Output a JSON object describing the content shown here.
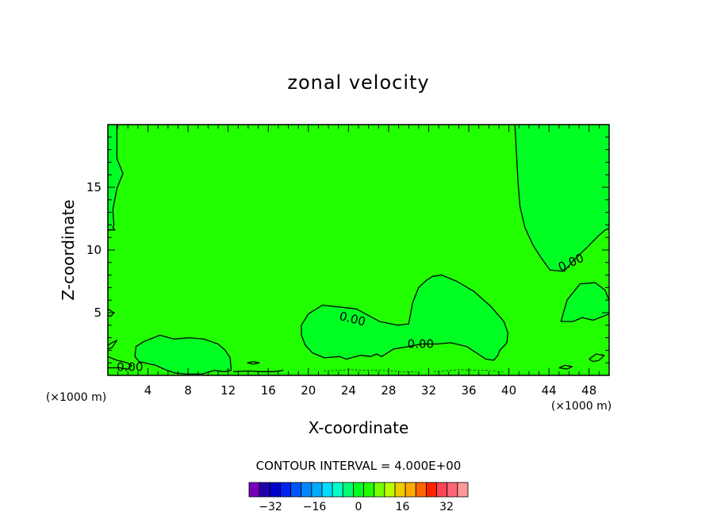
{
  "chart_data": {
    "type": "contour",
    "title": "zonal velocity",
    "xlabel": "X-coordinate",
    "ylabel": "Z-coordinate",
    "x_unit": "(×1000 m)",
    "xlim": [
      0,
      50
    ],
    "ylim": [
      0,
      20
    ],
    "x_ticks": [
      4,
      8,
      12,
      16,
      20,
      24,
      28,
      32,
      36,
      40,
      44,
      48
    ],
    "x_tick_labels": [
      "4",
      "8",
      "12",
      "16",
      "20",
      "24",
      "28",
      "32",
      "36",
      "40",
      "44",
      "48"
    ],
    "y_ticks": [
      5,
      10,
      15
    ],
    "y_tick_labels": [
      "5",
      "10",
      "15"
    ],
    "contour_interval_text": "CONTOUR INTERVAL = 4.000E+00",
    "contour_interval": 4.0,
    "contour_line_labels": [
      "0.00",
      "0.00",
      "0.00",
      "0.00"
    ],
    "background_fill_color": "#22ff00",
    "region_fill_color": "#00ff22",
    "regions": [
      {
        "kind": "negative",
        "x": [
          0,
          0.9,
          0.9,
          1.5,
          0.9,
          0.5,
          0.6,
          0.5,
          0.7,
          0
        ],
        "y": [
          20,
          20,
          17.3,
          16.1,
          14.9,
          13.2,
          12.0,
          11.8,
          11.6,
          11.6
        ]
      },
      {
        "kind": "negative",
        "x": [
          40.6,
          40.9,
          41.1,
          41.6,
          42.4,
          43.2,
          44.1,
          45.5,
          46.6,
          47.8,
          48.9,
          49.6,
          50,
          50,
          40.6
        ],
        "y": [
          20,
          15.5,
          13.5,
          11.8,
          10.4,
          9.4,
          8.4,
          8.3,
          9.3,
          10.2,
          11.1,
          11.6,
          11.7,
          20,
          20
        ]
      },
      {
        "kind": "negative",
        "x": [
          19.3,
          20.0,
          21.4,
          24.8,
          27.1,
          28.9,
          30.0,
          30.4,
          31.0,
          31.8,
          32.4,
          33.3,
          34.8,
          36.5,
          38.2,
          39.5,
          39.9,
          39.8,
          39.1,
          38.9,
          38.5,
          37.7,
          35.8,
          34.2,
          32.8,
          31.3,
          30.0,
          28.5,
          27.3,
          26.8,
          26.2,
          25.2,
          23.8,
          23.1,
          21.6,
          20.4,
          19.7,
          19.3
        ],
        "y": [
          4.0,
          4.9,
          5.6,
          5.3,
          4.3,
          4.0,
          4.1,
          5.8,
          7.0,
          7.6,
          7.9,
          8.0,
          7.5,
          6.7,
          5.5,
          4.3,
          3.4,
          2.6,
          2.0,
          1.6,
          1.2,
          1.3,
          2.3,
          2.6,
          2.5,
          2.5,
          2.3,
          2.1,
          1.5,
          1.7,
          1.5,
          1.6,
          1.3,
          1.5,
          1.4,
          1.8,
          2.4,
          3.2
        ]
      },
      {
        "kind": "negative",
        "x": [
          2.8,
          3.6,
          5.2,
          6.6,
          8.1,
          9.6,
          11.0,
          11.7,
          12.2,
          12.3,
          11.6,
          10.6,
          9.4,
          7.8,
          6.6,
          5.6,
          4.8,
          4.2,
          3.1,
          2.7,
          2.8
        ],
        "y": [
          2.3,
          2.7,
          3.2,
          2.9,
          3.0,
          2.9,
          2.5,
          2.0,
          1.4,
          0.4,
          0.3,
          0.4,
          0.1,
          0.1,
          0.2,
          0.5,
          0.8,
          0.9,
          1.1,
          1.5,
          2.3
        ]
      },
      {
        "kind": "negative",
        "x": [
          45.2,
          45.8,
          47.1,
          48.6,
          49.6,
          50,
          50,
          48.4,
          47.3,
          46.4,
          45.4,
          45.2
        ],
        "y": [
          4.3,
          6.0,
          7.3,
          7.4,
          6.8,
          6.0,
          4.9,
          4.4,
          4.6,
          4.3,
          4.3,
          4.3
        ]
      }
    ],
    "contours": [
      {
        "value": 0,
        "x": [
          0.9,
          0.9,
          1.5,
          0.9,
          0.5,
          0.6,
          0.5,
          0.7,
          0
        ],
        "y": [
          20,
          17.3,
          16.1,
          14.9,
          13.2,
          12.0,
          11.8,
          11.6,
          11.6
        ]
      },
      {
        "value": 0,
        "x": [
          40.6,
          40.9,
          41.1,
          41.6,
          42.4,
          43.2,
          44.1,
          45.5,
          46.6,
          47.8,
          48.9,
          49.6,
          50
        ],
        "y": [
          20,
          15.5,
          13.5,
          11.8,
          10.4,
          9.4,
          8.4,
          8.3,
          9.3,
          10.2,
          11.1,
          11.6,
          11.7
        ]
      },
      {
        "value": 0,
        "closed": true,
        "x": [
          19.3,
          20.0,
          21.4,
          24.8,
          27.1,
          28.9,
          30.0,
          30.4,
          31.0,
          31.8,
          32.4,
          33.3,
          34.8,
          36.5,
          38.2,
          39.5,
          39.9,
          39.8,
          39.1,
          38.9,
          38.5,
          37.7,
          35.8,
          34.2,
          32.8,
          31.3,
          30.0,
          28.5,
          27.3,
          26.8,
          26.2,
          25.2,
          23.8,
          23.1,
          21.6,
          20.4,
          19.7,
          19.3
        ],
        "y": [
          4.0,
          4.9,
          5.6,
          5.3,
          4.3,
          4.0,
          4.1,
          5.8,
          7.0,
          7.6,
          7.9,
          8.0,
          7.5,
          6.7,
          5.5,
          4.3,
          3.4,
          2.6,
          2.0,
          1.6,
          1.2,
          1.3,
          2.3,
          2.6,
          2.5,
          2.5,
          2.3,
          2.1,
          1.5,
          1.7,
          1.5,
          1.6,
          1.3,
          1.5,
          1.4,
          1.8,
          2.4,
          3.2
        ]
      },
      {
        "value": 0,
        "closed": true,
        "x": [
          2.8,
          3.6,
          5.2,
          6.6,
          8.1,
          9.6,
          11.0,
          11.7,
          12.2,
          12.3,
          11.6,
          10.6,
          9.4,
          7.8,
          6.6,
          5.6,
          4.8,
          4.2,
          3.1,
          2.7,
          2.8
        ],
        "y": [
          2.3,
          2.7,
          3.2,
          2.9,
          3.0,
          2.9,
          2.5,
          2.0,
          1.4,
          0.4,
          0.3,
          0.4,
          0.1,
          0.1,
          0.2,
          0.5,
          0.8,
          0.9,
          1.1,
          1.5,
          2.3
        ]
      },
      {
        "value": 0,
        "x": [
          50,
          49.6,
          48.6,
          47.1,
          45.8,
          45.2,
          45.4,
          46.4,
          47.3,
          48.4,
          50
        ],
        "y": [
          6.0,
          6.8,
          7.4,
          7.3,
          6.0,
          4.3,
          4.3,
          4.3,
          4.6,
          4.4,
          4.9
        ]
      },
      {
        "value": 0,
        "x": [
          0,
          0.6,
          0.3,
          0
        ],
        "y": [
          5.3,
          5.0,
          4.7,
          4.8
        ]
      },
      {
        "value": 0,
        "x": [
          0,
          0.9,
          1.5,
          1.9,
          2.4,
          2.0,
          1.2,
          0
        ],
        "y": [
          1.5,
          1.2,
          1.1,
          1.0,
          0.8,
          0.5,
          0.6,
          0.6
        ]
      },
      {
        "value": 0,
        "x": [
          12.5,
          14.0,
          15.3,
          16.6,
          17.5
        ],
        "y": [
          0.3,
          0.35,
          0.3,
          0.3,
          0.4
        ]
      },
      {
        "value": 0,
        "x": [
          13.9,
          14.5,
          15.1,
          14.5,
          13.9
        ],
        "y": [
          1.0,
          1.1,
          1.0,
          0.9,
          1.0
        ]
      },
      {
        "value": 0,
        "x": [
          48.0,
          48.7,
          49.5,
          49.0,
          48.4,
          48.0
        ],
        "y": [
          1.3,
          1.7,
          1.6,
          1.2,
          1.1,
          1.3
        ]
      },
      {
        "value": 0,
        "x": [
          45.0,
          45.6,
          46.3,
          45.8,
          45.0
        ],
        "y": [
          0.6,
          0.8,
          0.7,
          0.5,
          0.6
        ]
      },
      {
        "value": 0,
        "x": [
          0,
          0.4,
          0.9,
          0.4,
          0
        ],
        "y": [
          2.4,
          2.6,
          2.8,
          2.2,
          2.1
        ]
      }
    ],
    "weak_contours": [
      {
        "x": [
          21.5,
          24.0,
          27.0,
          29.5,
          31.0
        ],
        "y": [
          0.35,
          0.45,
          0.4,
          0.3,
          0.25
        ]
      },
      {
        "x": [
          32.5,
          35.0,
          38.0,
          39.5
        ],
        "y": [
          0.3,
          0.45,
          0.4,
          0.25
        ]
      }
    ],
    "contour_label_positions": [
      {
        "text": "0.00",
        "x": 24.4,
        "y": 4.5,
        "angle": 14
      },
      {
        "text": "0.00",
        "x": 31.2,
        "y": 2.5,
        "angle": 0
      },
      {
        "text": "0.00",
        "x": 46.2,
        "y": 9.0,
        "angle": -24
      },
      {
        "text": "0.00",
        "x": 2.2,
        "y": 0.65,
        "angle": 0
      }
    ],
    "colorbar": {
      "levels": [
        -36,
        -32,
        -28,
        -24,
        -20,
        -16,
        -12,
        -8,
        -4,
        0,
        4,
        8,
        12,
        16,
        20,
        24,
        28,
        32,
        36
      ],
      "colors": [
        "#7700bb",
        "#2200aa",
        "#0000cc",
        "#0022ee",
        "#0055ff",
        "#0088ff",
        "#00aaff",
        "#00ddff",
        "#00ffcc",
        "#00ff77",
        "#00ff22",
        "#22ff00",
        "#77ff00",
        "#bbff00",
        "#eecc00",
        "#ffaa00",
        "#ff6600",
        "#ff2200",
        "#ff4455",
        "#ff6677",
        "#ff9999"
      ],
      "tick_values": [
        -32,
        -16,
        0,
        16,
        32
      ],
      "tick_labels": [
        "−32",
        "−16",
        "0",
        "16",
        "32"
      ]
    }
  }
}
